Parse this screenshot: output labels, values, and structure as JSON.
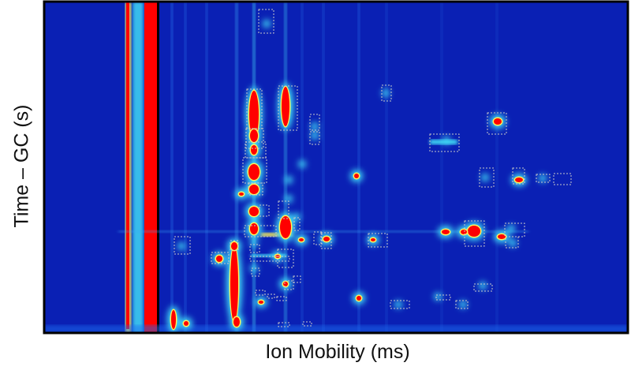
{
  "chart_data": {
    "type": "heatmap",
    "title": "",
    "xlabel": "Ion Mobility (ms)",
    "ylabel": "Time – GC (s)",
    "colormap": [
      "#0a1fb8",
      "#1a6cf0",
      "#3fd8f5",
      "#fff45a",
      "#ff0000"
    ],
    "grid": false,
    "annotations": "dashed rectangles marking detected peaks"
  },
  "colors": {
    "background": "#0a20b4",
    "border": "#000000",
    "peak": "#ff0000",
    "box": "#c8c8c8"
  }
}
